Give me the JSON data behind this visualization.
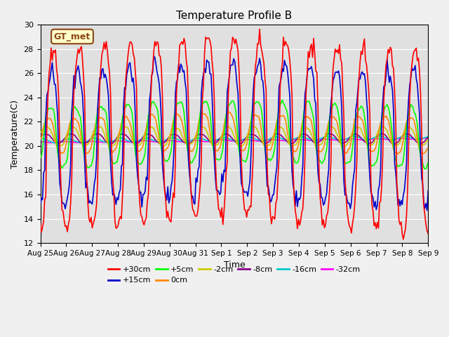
{
  "title": "Temperature Profile B",
  "xlabel": "Time",
  "ylabel": "Temperature(C)",
  "annotation": "GT_met",
  "ylim": [
    12,
    30
  ],
  "series_colors": {
    "+30cm": "#ff0000",
    "+15cm": "#0000cc",
    "+5cm": "#00ff00",
    "0cm": "#ff8800",
    "-2cm": "#cccc00",
    "-8cm": "#880088",
    "-16cm": "#00cccc",
    "-32cm": "#ff00ff"
  },
  "tick_labels": [
    "Aug 25",
    "Aug 26",
    "Aug 27",
    "Aug 28",
    "Aug 29",
    "Aug 30",
    "Aug 31",
    "Sep 1",
    "Sep 2",
    "Sep 3",
    "Sep 4",
    "Sep 5",
    "Sep 6",
    "Sep 7",
    "Sep 8",
    "Sep 9"
  ],
  "figsize": [
    6.4,
    4.8
  ],
  "dpi": 100
}
